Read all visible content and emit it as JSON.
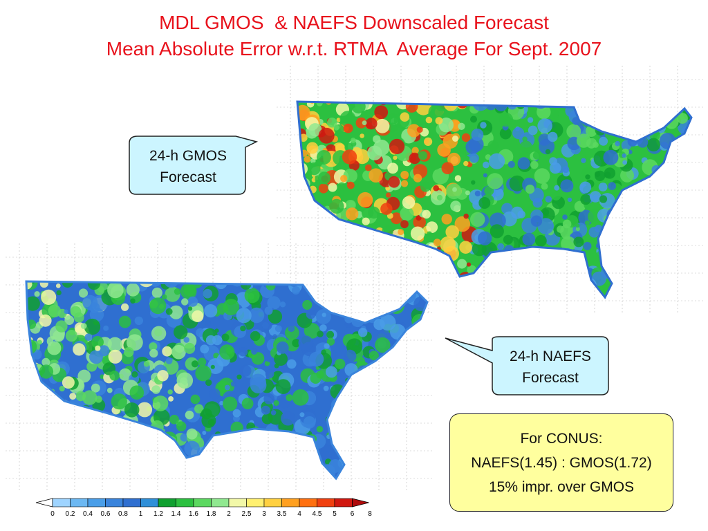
{
  "title": {
    "line1": "MDL GMOS  & NAEFS Downscaled Forecast",
    "line2": "Mean Absolute Error w.r.t. RTMA  Average For Sept. 2007"
  },
  "maps": [
    {
      "id": "gmos",
      "callout_lines": [
        "24-h GMOS",
        "Forecast"
      ]
    },
    {
      "id": "naefs",
      "callout_lines": [
        "24-h NAEFS",
        "Forecast"
      ]
    }
  ],
  "summary": {
    "line1": "For CONUS:",
    "line2": "NAEFS(1.45) : GMOS(1.72)",
    "line3": "15% impr. over GMOS"
  },
  "colorbar": {
    "labels": [
      "0",
      "0.2",
      "0.4",
      "0.6",
      "0.8",
      "1",
      "1.2",
      "1.4",
      "1.6",
      "1.8",
      "2",
      "2.5",
      "3",
      "3.5",
      "4",
      "4.5",
      "5",
      "6",
      "8"
    ],
    "colors": [
      "#ffffff",
      "#9fd4ff",
      "#6cb8f2",
      "#4a9ee8",
      "#3a84dc",
      "#2f6fd0",
      "#2f8fd8",
      "#10a030",
      "#2cc040",
      "#5cd860",
      "#90e890",
      "#f2f8a8",
      "#fff070",
      "#ffd040",
      "#ffa020",
      "#ff7010",
      "#f04010",
      "#d01810",
      "#b00c0c"
    ]
  }
}
